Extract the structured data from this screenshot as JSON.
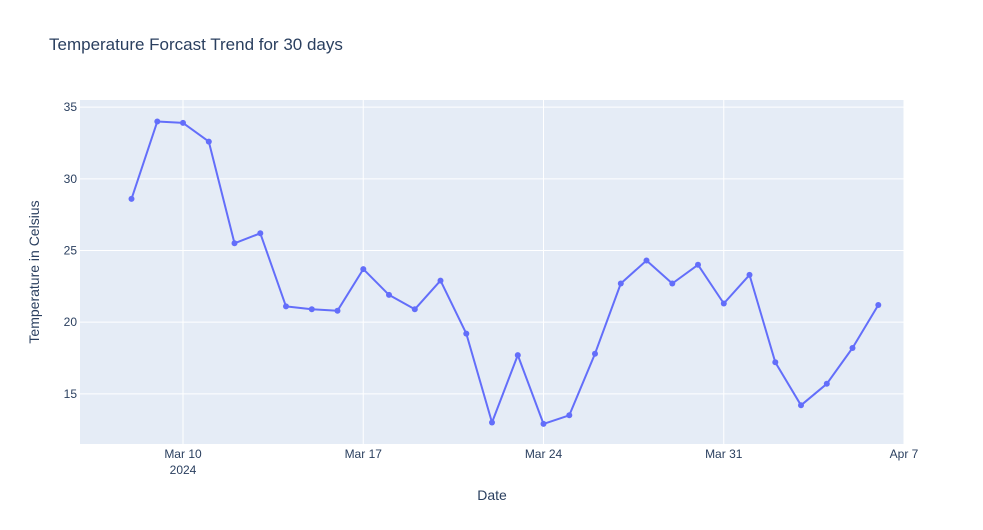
{
  "chart_data": {
    "type": "line",
    "title": "Temperature Forcast Trend for 30 days",
    "xlabel": "Date",
    "ylabel": "Temperature in Celsius",
    "x_tick_labels": [
      {
        "date": "2024-03-10",
        "label": "Mar 10",
        "sublabel": "2024"
      },
      {
        "date": "2024-03-17",
        "label": "Mar 17",
        "sublabel": ""
      },
      {
        "date": "2024-03-24",
        "label": "Mar 24",
        "sublabel": ""
      },
      {
        "date": "2024-03-31",
        "label": "Mar 31",
        "sublabel": ""
      },
      {
        "date": "2024-04-07",
        "label": "Apr 7",
        "sublabel": ""
      }
    ],
    "y_ticks": [
      15,
      20,
      25,
      30,
      35
    ],
    "xlim": [
      "2024-03-06",
      "2024-04-07"
    ],
    "ylim": [
      11.5,
      35.5
    ],
    "grid": true,
    "colors": {
      "line": "#636efa",
      "plot_bg": "#e5ecf6",
      "grid": "#ffffff",
      "text": "#2a3f5f"
    },
    "series": [
      {
        "x": [
          "2024-03-08",
          "2024-03-09",
          "2024-03-10",
          "2024-03-11",
          "2024-03-12",
          "2024-03-13",
          "2024-03-14",
          "2024-03-15",
          "2024-03-16",
          "2024-03-17",
          "2024-03-18",
          "2024-03-19",
          "2024-03-20",
          "2024-03-21",
          "2024-03-22",
          "2024-03-23",
          "2024-03-24",
          "2024-03-25",
          "2024-03-26",
          "2024-03-27",
          "2024-03-28",
          "2024-03-29",
          "2024-03-30",
          "2024-03-31",
          "2024-04-01",
          "2024-04-02",
          "2024-04-03",
          "2024-04-04",
          "2024-04-05",
          "2024-04-06"
        ],
        "values": [
          28.6,
          34.0,
          33.9,
          32.6,
          25.5,
          26.2,
          21.1,
          20.9,
          20.8,
          23.7,
          21.9,
          20.9,
          22.9,
          19.2,
          13.0,
          17.7,
          12.9,
          13.5,
          17.8,
          22.7,
          24.3,
          22.7,
          24.0,
          21.3,
          23.3,
          17.2,
          14.2,
          15.7,
          18.2,
          21.2
        ]
      }
    ]
  }
}
